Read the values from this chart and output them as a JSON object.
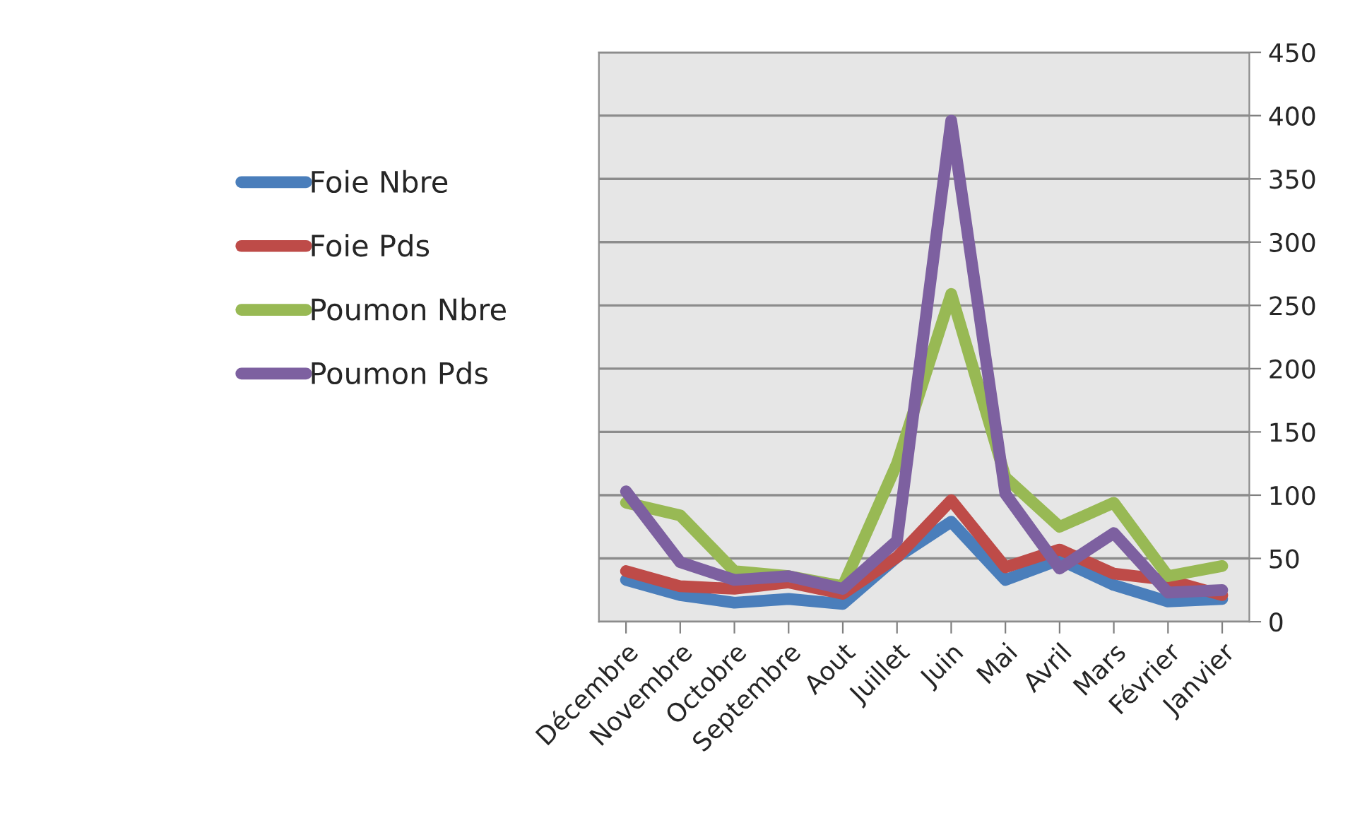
{
  "chart_data": {
    "type": "line",
    "categories": [
      "Décembre",
      "Novembre",
      "Octobre",
      "Septembre",
      "Aout",
      "Juillet",
      "Juin",
      "Mai",
      "Avril",
      "Mars",
      "Février",
      "Janvier"
    ],
    "series": [
      {
        "name": "Foie Nbre",
        "color": "#4a7ebb",
        "values": [
          33,
          21,
          15,
          18,
          14,
          51,
          79,
          33,
          49,
          29,
          16,
          18
        ]
      },
      {
        "name": "Foie Pds",
        "color": "#be4b48",
        "values": [
          40,
          28,
          26,
          31,
          22,
          51,
          96,
          43,
          57,
          38,
          33,
          21
        ]
      },
      {
        "name": "Poumon Nbre",
        "color": "#98b954",
        "values": [
          94,
          84,
          40,
          36,
          28,
          125,
          259,
          114,
          75,
          94,
          36,
          44
        ]
      },
      {
        "name": "Poumon Pds",
        "color": "#7d60a0",
        "values": [
          103,
          47,
          33,
          36,
          26,
          64,
          396,
          101,
          42,
          70,
          23,
          25
        ]
      }
    ],
    "ylim": [
      0,
      450
    ],
    "yticks": [
      0,
      50,
      100,
      150,
      200,
      250,
      300,
      350,
      400,
      450
    ],
    "grid": "y",
    "legend": "left",
    "marker": "none",
    "line_style": "solid"
  }
}
